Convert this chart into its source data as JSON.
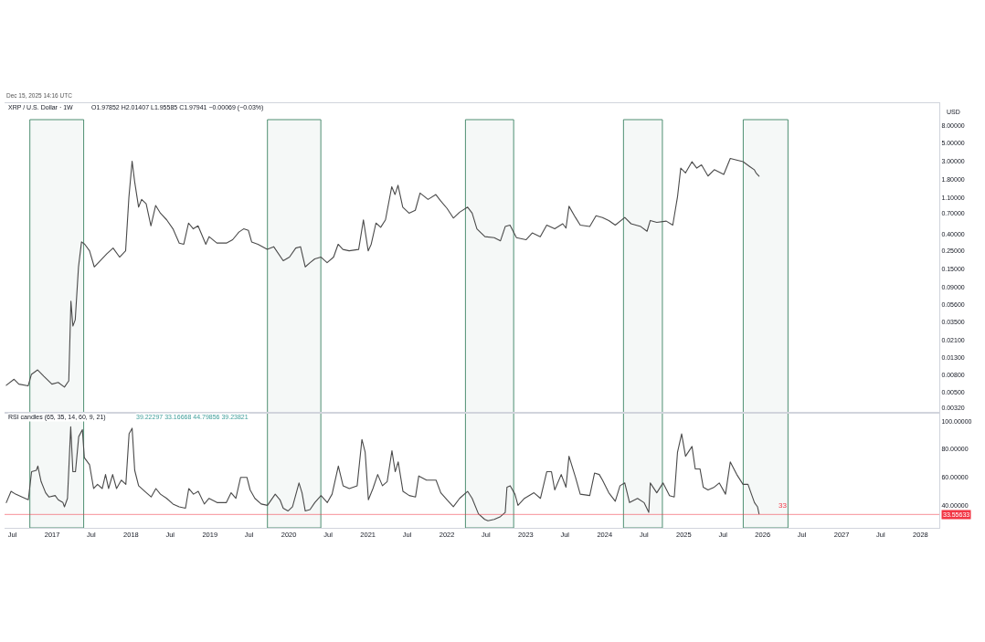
{
  "chart_data": [
    {
      "type": "line",
      "title": "XRP / U.S. Dollar · 1W",
      "subtitle": "O1.97852 H2.01407 L1.95585 C1.97941 −0.00069 (−0.03%)",
      "ylabel": "USD",
      "annotations": [
        "Dec 15, 2025 14:16 UTC"
      ],
      "log": "y",
      "tick_labels": "y",
      "xlim": [
        "2016-05-26",
        "2028-03-28"
      ],
      "ylim": [
        0.0028,
        15
      ],
      "yticks": [
        {
          "value": 8,
          "label": "8.00000"
        },
        {
          "value": 5,
          "label": "5.00000"
        },
        {
          "value": 3,
          "label": "3.00000"
        },
        {
          "value": 1.8,
          "label": "1.80000"
        },
        {
          "value": 1.1,
          "label": "1.10000"
        },
        {
          "value": 0.7,
          "label": "0.70000"
        },
        {
          "value": 0.4,
          "label": "0.40000"
        },
        {
          "value": 0.25,
          "label": "0.25000"
        },
        {
          "value": 0.15,
          "label": "0.15000"
        },
        {
          "value": 0.09,
          "label": "0.09000"
        },
        {
          "value": 0.056,
          "label": "0.05600"
        },
        {
          "value": 0.035,
          "label": "0.03500"
        },
        {
          "value": 0.021,
          "label": "0.02100"
        },
        {
          "value": 0.013,
          "label": "0.01300"
        },
        {
          "value": 0.008,
          "label": "0.00800"
        },
        {
          "value": 0.005,
          "label": "0.00500"
        },
        {
          "value": 0.0032,
          "label": "0.00320"
        }
      ],
      "x": [
        "2016-06-03",
        "2016-07-09",
        "2016-07-31",
        "2016-09-12",
        "2016-09-27",
        "2016-10-26",
        "2016-11-24",
        "2016-12-31",
        "2017-01-29",
        "2017-02-27",
        "2017-03-19",
        "2017-03-29",
        "2017-04-07",
        "2017-04-18",
        "2017-05-03",
        "2017-05-17",
        "2017-06-01",
        "2017-06-23",
        "2017-07-15",
        "2017-08-12",
        "2017-09-11",
        "2017-10-10",
        "2017-11-09",
        "2017-12-07",
        "2017-12-22",
        "2018-01-06",
        "2018-01-18",
        "2018-02-05",
        "2018-02-19",
        "2018-03-12",
        "2018-04-03",
        "2018-04-25",
        "2018-05-17",
        "2018-06-15",
        "2018-07-14",
        "2018-08-12",
        "2018-09-02",
        "2018-09-24",
        "2018-10-16",
        "2018-11-07",
        "2018-12-13",
        "2018-12-28",
        "2019-02-02",
        "2019-03-18",
        "2019-04-16",
        "2019-05-15",
        "2019-06-06",
        "2019-06-28",
        "2019-07-13",
        "2019-08-11",
        "2019-09-23",
        "2019-10-23",
        "2019-12-06",
        "2020-01-04",
        "2020-02-02",
        "2020-02-24",
        "2020-03-17",
        "2020-04-08",
        "2020-04-30",
        "2020-05-29",
        "2020-06-26",
        "2020-07-26",
        "2020-08-16",
        "2020-09-07",
        "2020-10-06",
        "2020-11-19",
        "2020-12-11",
        "2021-01-02",
        "2021-01-16",
        "2021-02-07",
        "2021-03-01",
        "2021-03-23",
        "2021-04-21",
        "2021-05-06",
        "2021-05-20",
        "2021-06-11",
        "2021-07-10",
        "2021-08-08",
        "2021-08-30",
        "2021-10-06",
        "2021-11-11",
        "2021-12-03",
        "2022-01-02",
        "2022-01-31",
        "2022-03-01",
        "2022-04-07",
        "2022-04-28",
        "2022-05-20",
        "2022-06-26",
        "2022-08-08",
        "2022-09-06",
        "2022-09-28",
        "2022-10-20",
        "2022-11-19",
        "2023-01-02",
        "2023-01-31",
        "2023-03-09",
        "2023-04-08",
        "2023-05-15",
        "2023-06-21",
        "2023-07-06",
        "2023-07-20",
        "2023-08-19",
        "2023-09-10",
        "2023-10-24",
        "2023-11-22",
        "2023-12-22",
        "2024-01-20",
        "2024-02-19",
        "2024-04-03",
        "2024-05-02",
        "2024-06-16",
        "2024-07-15",
        "2024-07-30",
        "2024-08-29",
        "2024-10-12",
        "2024-11-11",
        "2024-12-03",
        "2024-12-18",
        "2025-01-09",
        "2025-02-08",
        "2025-03-02",
        "2025-03-24",
        "2025-04-23",
        "2025-05-22",
        "2025-07-05",
        "2025-08-04",
        "2025-09-02",
        "2025-10-02",
        "2025-11-01",
        "2025-11-23",
        "2025-12-01",
        "2025-12-15"
      ],
      "series": [
        {
          "color": "#4a4a4a",
          "values": [
            0.006,
            0.0071,
            0.0062,
            0.0059,
            0.0081,
            0.0092,
            0.0077,
            0.0062,
            0.0065,
            0.0057,
            0.0068,
            0.062,
            0.031,
            0.037,
            0.16,
            0.32,
            0.3,
            0.25,
            0.16,
            0.19,
            0.23,
            0.27,
            0.21,
            0.25,
            1.09,
            3.0,
            1.68,
            0.84,
            1.04,
            0.92,
            0.5,
            0.88,
            0.71,
            0.59,
            0.46,
            0.31,
            0.3,
            0.54,
            0.46,
            0.5,
            0.3,
            0.37,
            0.31,
            0.31,
            0.34,
            0.42,
            0.46,
            0.44,
            0.32,
            0.3,
            0.26,
            0.28,
            0.19,
            0.21,
            0.27,
            0.28,
            0.16,
            0.18,
            0.2,
            0.21,
            0.18,
            0.21,
            0.3,
            0.26,
            0.25,
            0.26,
            0.59,
            0.25,
            0.3,
            0.54,
            0.48,
            0.59,
            1.48,
            1.19,
            1.54,
            0.84,
            0.71,
            0.77,
            1.24,
            1.04,
            1.19,
            1.0,
            0.81,
            0.62,
            0.73,
            0.84,
            0.71,
            0.46,
            0.37,
            0.36,
            0.33,
            0.49,
            0.51,
            0.36,
            0.34,
            0.41,
            0.37,
            0.51,
            0.46,
            0.53,
            0.47,
            0.86,
            0.63,
            0.51,
            0.49,
            0.66,
            0.63,
            0.58,
            0.51,
            0.63,
            0.53,
            0.49,
            0.43,
            0.58,
            0.55,
            0.57,
            0.51,
            1.12,
            2.48,
            2.17,
            2.96,
            2.48,
            2.71,
            1.99,
            2.37,
            2.08,
            3.24,
            3.1,
            2.96,
            2.6,
            2.37,
            2.17,
            1.98
          ]
        }
      ],
      "bands": [
        {
          "axis": "x",
          "from": "2016-09-20",
          "to": "2017-05-27",
          "color": "#4f8f72"
        },
        {
          "axis": "x",
          "from": "2019-09-24",
          "to": "2020-05-28",
          "color": "#4f8f72"
        },
        {
          "axis": "x",
          "from": "2022-03-28",
          "to": "2022-11-06",
          "color": "#4f8f72"
        },
        {
          "axis": "x",
          "from": "2024-03-28",
          "to": "2024-09-24",
          "color": "#4f8f72"
        },
        {
          "axis": "x",
          "from": "2025-10-03",
          "to": "2026-04-28",
          "color": "#4f8f72"
        }
      ]
    },
    {
      "type": "line",
      "title": "RSI candles (65, 35, 14, 60, 9, 21)",
      "subtitle": "39.22297 33.16668 44.79856 39.23821",
      "xlim": [
        "2016-05-26",
        "2028-03-28"
      ],
      "ylim": [
        24,
        106
      ],
      "xticks": [
        {
          "value": "2016-07-01",
          "label": "Jul"
        },
        {
          "value": "2017-01-01",
          "label": "2017"
        },
        {
          "value": "2017-07-01",
          "label": "Jul"
        },
        {
          "value": "2018-01-01",
          "label": "2018"
        },
        {
          "value": "2018-07-01",
          "label": "Jul"
        },
        {
          "value": "2019-01-01",
          "label": "2019"
        },
        {
          "value": "2019-07-01",
          "label": "Jul"
        },
        {
          "value": "2020-01-01",
          "label": "2020"
        },
        {
          "value": "2020-07-01",
          "label": "Jul"
        },
        {
          "value": "2021-01-01",
          "label": "2021"
        },
        {
          "value": "2021-07-01",
          "label": "Jul"
        },
        {
          "value": "2022-01-01",
          "label": "2022"
        },
        {
          "value": "2022-07-01",
          "label": "Jul"
        },
        {
          "value": "2023-01-01",
          "label": "2023"
        },
        {
          "value": "2023-07-01",
          "label": "Jul"
        },
        {
          "value": "2024-01-01",
          "label": "2024"
        },
        {
          "value": "2024-07-01",
          "label": "Jul"
        },
        {
          "value": "2025-01-01",
          "label": "2025"
        },
        {
          "value": "2025-07-01",
          "label": "Jul"
        },
        {
          "value": "2026-01-01",
          "label": "2026"
        },
        {
          "value": "2026-07-01",
          "label": "Jul"
        },
        {
          "value": "2027-01-01",
          "label": "2027"
        },
        {
          "value": "2027-07-01",
          "label": "Jul"
        },
        {
          "value": "2028-01-01",
          "label": "2028"
        }
      ],
      "yticks": [
        {
          "value": 100,
          "label": "100.00000"
        },
        {
          "value": 80,
          "label": "80.00000"
        },
        {
          "value": 60,
          "label": "60.00000"
        },
        {
          "value": 40,
          "label": "40.00000"
        }
      ],
      "x": [
        "2016-06-03",
        "2016-06-25",
        "2016-07-16",
        "2016-08-15",
        "2016-09-13",
        "2016-09-28",
        "2016-10-20",
        "2016-10-27",
        "2016-11-11",
        "2016-12-02",
        "2016-12-17",
        "2017-01-15",
        "2017-01-29",
        "2017-02-20",
        "2017-02-27",
        "2017-03-13",
        "2017-03-28",
        "2017-04-07",
        "2017-04-19",
        "2017-05-04",
        "2017-05-21",
        "2017-05-30",
        "2017-06-23",
        "2017-07-12",
        "2017-07-30",
        "2017-08-21",
        "2017-09-05",
        "2017-09-19",
        "2017-10-08",
        "2017-10-26",
        "2017-11-17",
        "2017-12-08",
        "2017-12-23",
        "2018-01-06",
        "2018-01-18",
        "2018-02-05",
        "2018-03-06",
        "2018-04-04",
        "2018-04-26",
        "2018-05-17",
        "2018-06-15",
        "2018-07-14",
        "2018-08-12",
        "2018-09-10",
        "2018-09-25",
        "2018-10-17",
        "2018-11-08",
        "2018-12-06",
        "2018-12-28",
        "2019-02-03",
        "2019-03-18",
        "2019-04-09",
        "2019-05-01",
        "2019-05-23",
        "2019-06-21",
        "2019-07-06",
        "2019-07-28",
        "2019-08-26",
        "2019-09-24",
        "2019-10-30",
        "2019-11-21",
        "2019-12-06",
        "2019-12-28",
        "2020-01-18",
        "2020-02-17",
        "2020-03-02",
        "2020-03-17",
        "2020-04-08",
        "2020-04-30",
        "2020-05-29",
        "2020-06-27",
        "2020-07-19",
        "2020-08-17",
        "2020-09-08",
        "2020-10-07",
        "2020-11-12",
        "2020-12-04",
        "2020-12-19",
        "2021-01-03",
        "2021-01-24",
        "2021-02-15",
        "2021-03-09",
        "2021-03-31",
        "2021-04-22",
        "2021-05-07",
        "2021-05-21",
        "2021-06-12",
        "2021-07-11",
        "2021-08-09",
        "2021-08-24",
        "2021-09-29",
        "2021-11-12",
        "2021-12-04",
        "2022-01-02",
        "2022-01-31",
        "2022-03-01",
        "2022-04-07",
        "2022-04-28",
        "2022-05-27",
        "2022-06-25",
        "2022-07-10",
        "2022-08-08",
        "2022-09-06",
        "2022-09-28",
        "2022-10-06",
        "2022-10-21",
        "2022-11-12",
        "2022-11-26",
        "2022-12-26",
        "2023-02-08",
        "2023-03-10",
        "2023-04-08",
        "2023-04-30",
        "2023-05-15",
        "2023-06-14",
        "2023-07-06",
        "2023-07-20",
        "2023-08-19",
        "2023-09-10",
        "2023-10-24",
        "2023-11-15",
        "2023-12-07",
        "2023-12-22",
        "2024-01-20",
        "2024-02-19",
        "2024-03-12",
        "2024-04-03",
        "2024-04-25",
        "2024-06-01",
        "2024-07-01",
        "2024-07-23",
        "2024-07-30",
        "2024-08-29",
        "2024-09-27",
        "2024-10-27",
        "2024-11-18",
        "2024-12-03",
        "2024-12-22",
        "2025-01-09",
        "2025-02-08",
        "2025-02-23",
        "2025-03-17",
        "2025-04-01",
        "2025-04-23",
        "2025-05-22",
        "2025-06-14",
        "2025-07-13",
        "2025-08-04",
        "2025-09-03",
        "2025-10-02",
        "2025-10-25",
        "2025-11-10",
        "2025-11-24",
        "2025-12-08",
        "2025-12-15"
      ],
      "series": [
        {
          "color": "#4a4a4a",
          "values": [
            42,
            50,
            48,
            46,
            44,
            64,
            65,
            68,
            57,
            49,
            46,
            47,
            44,
            42,
            39,
            45,
            96,
            64,
            64,
            89,
            94,
            74,
            69,
            52,
            55,
            52,
            62,
            52,
            62,
            52,
            58,
            55,
            91,
            95,
            65,
            54,
            50,
            46,
            52,
            48,
            45,
            41,
            39,
            38,
            52,
            48,
            50,
            41,
            45,
            42,
            42,
            49,
            45,
            60,
            60,
            51,
            45,
            41,
            40,
            48,
            44,
            38,
            36,
            39,
            56,
            49,
            36,
            37,
            42,
            47,
            42,
            48,
            68,
            54,
            52,
            54,
            87,
            78,
            44,
            52,
            62,
            54,
            57,
            79,
            64,
            71,
            50,
            47,
            46,
            61,
            58,
            58,
            49,
            44,
            39,
            45,
            50,
            45,
            34,
            30,
            29,
            30,
            32,
            35,
            53,
            54,
            48,
            40,
            45,
            49,
            45,
            64,
            64,
            51,
            62,
            53,
            75,
            60,
            48,
            47,
            63,
            62,
            58,
            49,
            43,
            54,
            56,
            42,
            45,
            42,
            35,
            56,
            49,
            56,
            47,
            46,
            78,
            91,
            75,
            82,
            66,
            66,
            53,
            51,
            53,
            56,
            48,
            71,
            62,
            55,
            55,
            48,
            42,
            39,
            34
          ]
        }
      ],
      "ref_lines": [
        {
          "axis": "y",
          "value": 33.55633,
          "label": "33.55633",
          "color": "#f23645"
        }
      ],
      "annotations": [
        {
          "text": "33",
          "x": "2026-04-01",
          "y": 33.55633
        }
      ],
      "bands": [
        {
          "axis": "x",
          "from": "2016-09-20",
          "to": "2017-05-27",
          "color": "#4f8f72"
        },
        {
          "axis": "x",
          "from": "2019-09-24",
          "to": "2020-05-28",
          "color": "#4f8f72"
        },
        {
          "axis": "x",
          "from": "2022-03-28",
          "to": "2022-11-06",
          "color": "#4f8f72"
        },
        {
          "axis": "x",
          "from": "2024-03-28",
          "to": "2024-09-24",
          "color": "#4f8f72"
        },
        {
          "axis": "x",
          "from": "2025-10-03",
          "to": "2026-04-28",
          "color": "#4f8f72"
        }
      ]
    }
  ]
}
